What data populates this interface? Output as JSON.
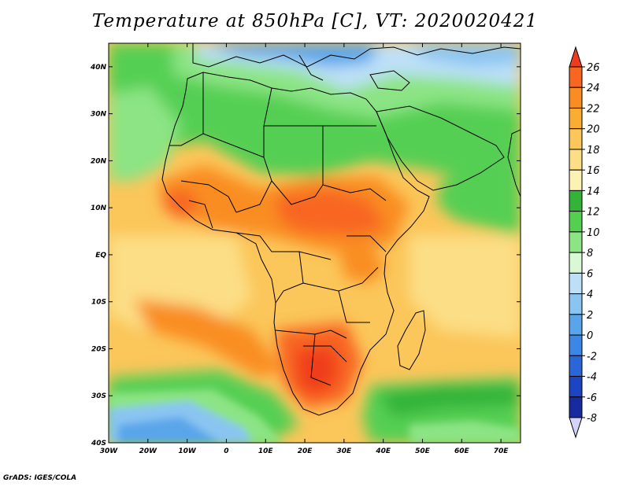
{
  "title": "Temperature at 850hPa [C], VT: 2020020421",
  "credit": "GrADS: IGES/COLA",
  "x_axis": {
    "labels": [
      "30W",
      "20W",
      "10W",
      "0",
      "10E",
      "20E",
      "30E",
      "40E",
      "50E",
      "60E",
      "70E"
    ],
    "lons": [
      -30,
      -20,
      -10,
      0,
      10,
      20,
      30,
      40,
      50,
      60,
      70
    ],
    "range": [
      -30,
      75
    ]
  },
  "y_axis": {
    "labels": [
      "40S",
      "30S",
      "20S",
      "10S",
      "EQ",
      "10N",
      "20N",
      "30N",
      "40N"
    ],
    "lats": [
      -40,
      -30,
      -20,
      -10,
      0,
      10,
      20,
      30,
      40
    ],
    "range": [
      -40,
      45
    ]
  },
  "colorbar": {
    "labels": [
      "26",
      "24",
      "22",
      "20",
      "18",
      "16",
      "14",
      "12",
      "10",
      "8",
      "6",
      "4",
      "2",
      "0",
      "-2",
      "-4",
      "-6",
      "-8"
    ],
    "colors": [
      "#f03c1e",
      "#f86622",
      "#f98d24",
      "#fbad33",
      "#fbc65a",
      "#fcde86",
      "#fcf2b4",
      "#33b338",
      "#55cf52",
      "#8ce484",
      "#daf8d6",
      "#bde0f8",
      "#8ac5f2",
      "#5aa5ea",
      "#3c87e6",
      "#2a66d8",
      "#1b45c2",
      "#182a9e",
      "#0a0e66"
    ]
  }
}
